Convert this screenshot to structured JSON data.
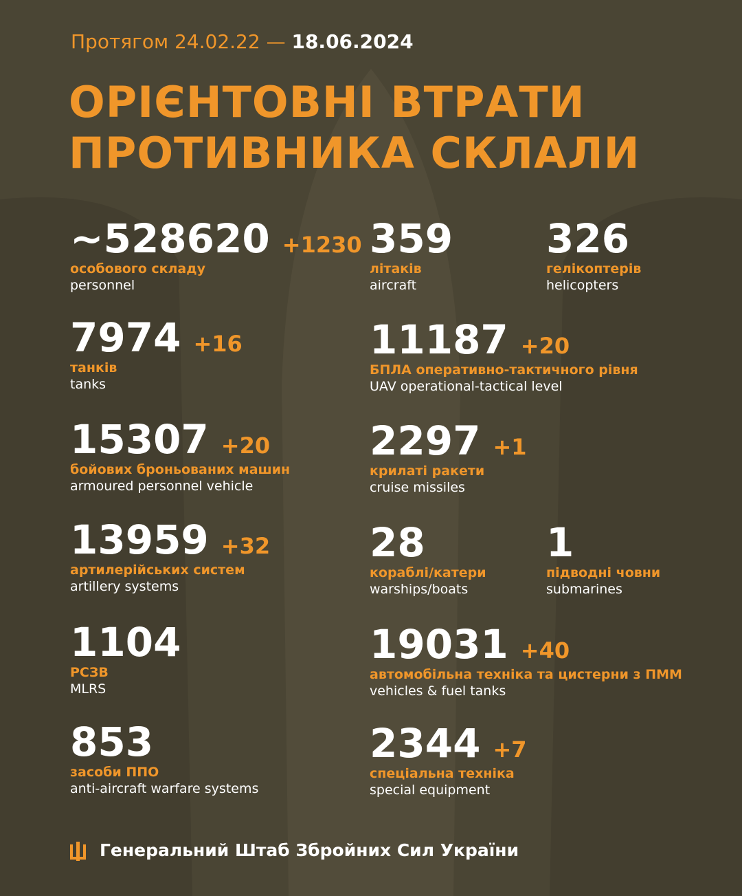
{
  "header": {
    "period": "Протягом 24.02.22 — ",
    "date": "18.06.2024",
    "title_lines": [
      "ОРІЄНТОВНІ ВТРАТИ",
      "ПРОТИВНИКА СКЛАЛИ"
    ]
  },
  "items": [
    {
      "value": "~528620",
      "delta": "+1230",
      "label_uk": "особового складу",
      "label_en": "personnel"
    },
    {
      "value": "359",
      "label_uk": "літаків",
      "label_en": "aircraft"
    },
    {
      "value": "326",
      "label_uk": "гелікоптерів",
      "label_en": "helicopters"
    },
    {
      "value": "7974",
      "delta": "+16",
      "label_uk": "танків",
      "label_en": "tanks"
    },
    {
      "value": "11187",
      "delta": "+20",
      "label_uk": "БПЛА оперативно-тактичного рівня",
      "label_en": "UAV operational-tactical level"
    },
    {
      "value": "15307",
      "delta": "+20",
      "label_uk": "бойових броньованих машин",
      "label_en": "armoured personnel vehicle"
    },
    {
      "value": "2297",
      "delta": "+1",
      "label_uk": "крилаті ракети",
      "label_en": "cruise missiles"
    },
    {
      "value": "13959",
      "delta": "+32",
      "label_uk": "артилерійських систем",
      "label_en": "artillery systems"
    },
    {
      "value": "28",
      "label_uk": "кораблі/катери",
      "label_en": "warships/boats"
    },
    {
      "value": "1",
      "label_uk": "підводні човни",
      "label_en": "submarines"
    },
    {
      "value": "1104",
      "label_uk": "РСЗВ",
      "label_en": "MLRS"
    },
    {
      "value": "19031",
      "delta": "+40",
      "label_uk": "автомобільна техніка та цистерни з ПММ",
      "label_en": "vehicles & fuel tanks"
    },
    {
      "value": "853",
      "label_uk": "засоби ППО",
      "label_en": "anti-aircraft warfare systems"
    },
    {
      "value": "2344",
      "delta": "+7",
      "label_uk": "спеціальна техніка",
      "label_en": "special equipment"
    }
  ],
  "footer": {
    "text": "Генеральний Штаб Збройних Сил України"
  }
}
